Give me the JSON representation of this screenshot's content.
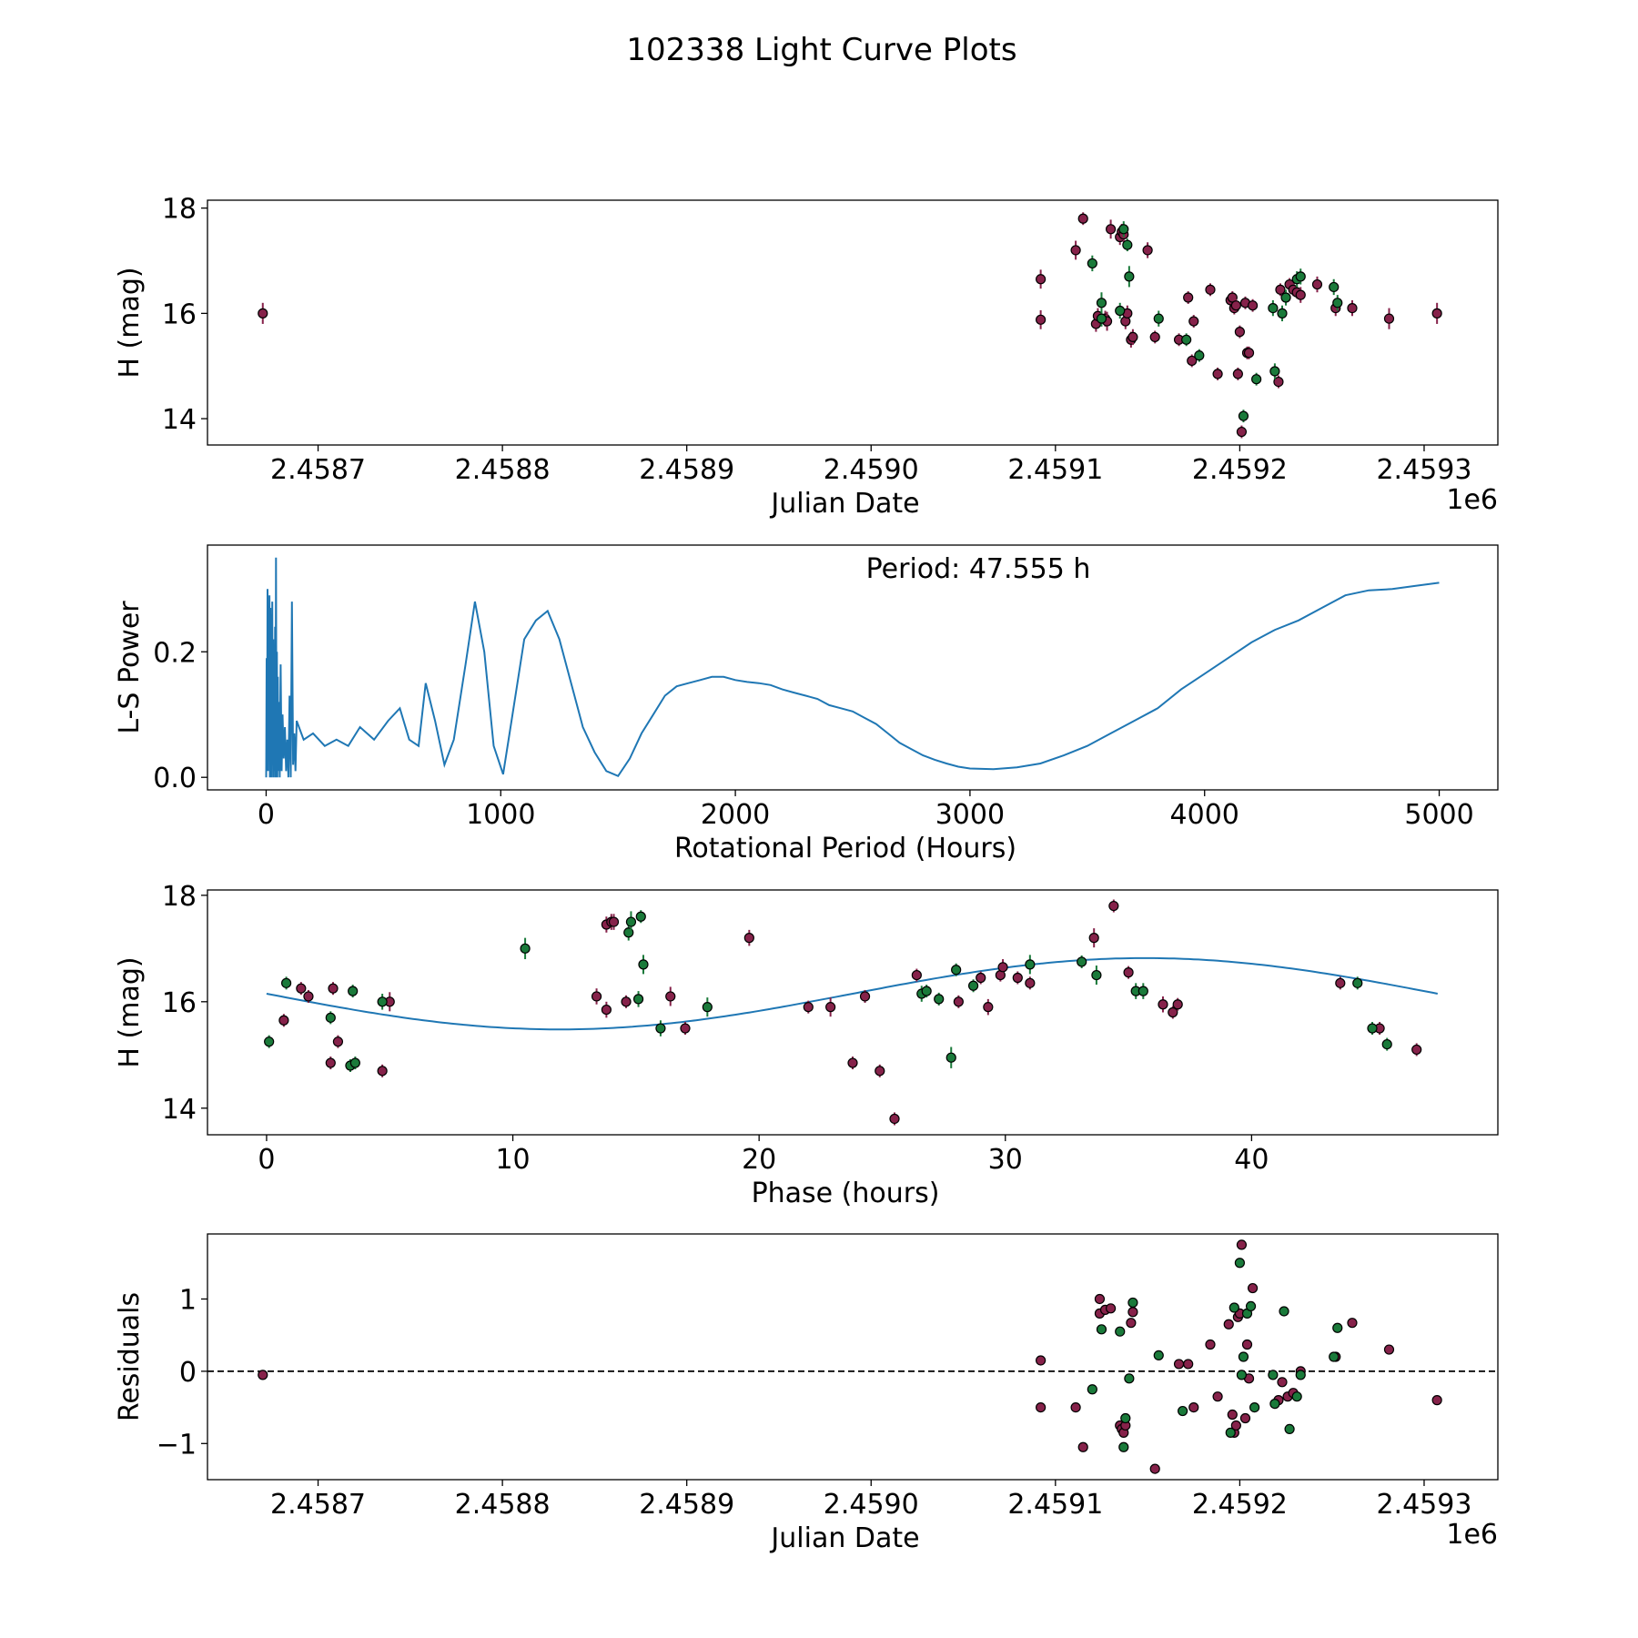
{
  "suptitle": "102338 Light Curve Plots",
  "colors": {
    "purple": "#86224a",
    "green": "#1a7a3a",
    "line": "#1f77b4",
    "marker_edge": "#000000"
  },
  "chart_data": [
    {
      "id": "jd",
      "type": "scatter",
      "xlabel": "Julian Date",
      "ylabel": "H (mag)",
      "x_offset_label": "1e6",
      "xlim": [
        2.45864,
        2.45934
      ],
      "ylim": [
        13.5,
        18.15
      ],
      "xticks": [
        2.4587,
        2.4588,
        2.4589,
        2.459,
        2.4591,
        2.4592,
        2.4593
      ],
      "xtick_labels": [
        "2.4587",
        "2.4588",
        "2.4589",
        "2.4590",
        "2.4591",
        "2.4592",
        "2.4593"
      ],
      "yticks": [
        14,
        16,
        18
      ],
      "ytick_labels": [
        "14",
        "16",
        "18"
      ],
      "series": [
        {
          "name": "purple",
          "x": [
            2.45867,
            2.459092,
            2.459092,
            2.459111,
            2.459115,
            2.459122,
            2.459123,
            2.459127,
            2.459128,
            2.45913,
            2.459135,
            2.459136,
            2.459137,
            2.459138,
            2.459139,
            2.459141,
            2.459142,
            2.45915,
            2.459154,
            2.459167,
            2.459172,
            2.459174,
            2.459175,
            2.459184,
            2.459188,
            2.459195,
            2.459196,
            2.459197,
            2.459198,
            2.459199,
            2.4592,
            2.459201,
            2.459203,
            2.459204,
            2.459205,
            2.459207,
            2.459221,
            2.459222,
            2.459227,
            2.459229,
            2.459231,
            2.459233,
            2.459242,
            2.459252,
            2.459261,
            2.459281,
            2.459307
          ],
          "y": [
            16.0,
            16.65,
            15.88,
            17.2,
            17.8,
            15.8,
            15.95,
            15.9,
            15.85,
            17.6,
            17.45,
            17.55,
            17.5,
            15.85,
            16.0,
            15.5,
            15.55,
            17.2,
            15.55,
            15.5,
            16.3,
            15.1,
            15.85,
            16.45,
            14.85,
            16.25,
            16.3,
            16.1,
            16.15,
            14.85,
            15.65,
            13.75,
            16.2,
            15.25,
            15.25,
            16.15,
            14.7,
            16.45,
            16.55,
            16.45,
            16.4,
            16.35,
            16.55,
            16.1,
            16.1,
            15.9,
            16.0
          ],
          "yerr": [
            0.2,
            0.18,
            0.18,
            0.18,
            0.12,
            0.15,
            0.15,
            0.15,
            0.18,
            0.18,
            0.15,
            0.15,
            0.15,
            0.15,
            0.15,
            0.15,
            0.15,
            0.15,
            0.12,
            0.12,
            0.12,
            0.12,
            0.12,
            0.12,
            0.12,
            0.12,
            0.12,
            0.12,
            0.12,
            0.12,
            0.12,
            0.12,
            0.12,
            0.12,
            0.12,
            0.12,
            0.12,
            0.12,
            0.12,
            0.12,
            0.12,
            0.15,
            0.15,
            0.15,
            0.15,
            0.2,
            0.2
          ]
        },
        {
          "name": "green",
          "x": [
            2.45912,
            2.459125,
            2.459125,
            2.459135,
            2.459137,
            2.459139,
            2.45914,
            2.459156,
            2.459171,
            2.459178,
            2.459202,
            2.459209,
            2.459218,
            2.459219,
            2.459223,
            2.459225,
            2.459231,
            2.459233,
            2.459251,
            2.459253
          ],
          "y": [
            16.95,
            16.2,
            15.9,
            16.05,
            17.6,
            17.3,
            16.7,
            15.9,
            15.5,
            15.2,
            14.05,
            14.75,
            16.1,
            14.9,
            16.0,
            16.3,
            16.65,
            16.7,
            16.5,
            16.2
          ],
          "yerr": [
            0.15,
            0.2,
            0.15,
            0.15,
            0.15,
            0.12,
            0.2,
            0.15,
            0.12,
            0.12,
            0.12,
            0.12,
            0.15,
            0.15,
            0.15,
            0.15,
            0.15,
            0.15,
            0.15,
            0.15
          ]
        }
      ]
    },
    {
      "id": "ls",
      "type": "line",
      "xlabel": "Rotational Period (Hours)",
      "ylabel": "L-S Power",
      "annotation": "Period: 47.555 h",
      "xlim": [
        -250,
        5250
      ],
      "ylim": [
        -0.02,
        0.37
      ],
      "xticks": [
        0,
        1000,
        2000,
        3000,
        4000,
        5000
      ],
      "xtick_labels": [
        "0",
        "1000",
        "2000",
        "3000",
        "4000",
        "5000"
      ],
      "yticks": [
        0.0,
        0.2
      ],
      "ytick_labels": [
        "0.0",
        "0.2"
      ],
      "x": [
        0,
        20,
        40,
        60,
        80,
        100,
        130,
        160,
        200,
        250,
        300,
        350,
        400,
        460,
        520,
        570,
        610,
        650,
        680,
        720,
        760,
        800,
        850,
        890,
        930,
        970,
        1010,
        1050,
        1100,
        1150,
        1200,
        1250,
        1300,
        1350,
        1400,
        1450,
        1500,
        1550,
        1600,
        1650,
        1700,
        1750,
        1800,
        1850,
        1900,
        1950,
        2000,
        2050,
        2100,
        2150,
        2200,
        2250,
        2300,
        2350,
        2400,
        2450,
        2500,
        2550,
        2600,
        2650,
        2700,
        2750,
        2800,
        2850,
        2900,
        2950,
        3000,
        3100,
        3200,
        3300,
        3400,
        3500,
        3600,
        3700,
        3800,
        3900,
        4000,
        4100,
        4200,
        4300,
        4400,
        4500,
        4600,
        4700,
        4800,
        4900,
        5000
      ],
      "y": [
        0.12,
        0.22,
        0.15,
        0.25,
        0.1,
        0.18,
        0.09,
        0.06,
        0.07,
        0.05,
        0.06,
        0.05,
        0.08,
        0.06,
        0.09,
        0.11,
        0.06,
        0.05,
        0.15,
        0.09,
        0.02,
        0.06,
        0.18,
        0.28,
        0.2,
        0.05,
        0.005,
        0.1,
        0.22,
        0.25,
        0.265,
        0.22,
        0.15,
        0.08,
        0.04,
        0.01,
        0.002,
        0.03,
        0.07,
        0.1,
        0.13,
        0.145,
        0.15,
        0.155,
        0.16,
        0.16,
        0.155,
        0.152,
        0.15,
        0.147,
        0.14,
        0.135,
        0.13,
        0.125,
        0.115,
        0.11,
        0.105,
        0.095,
        0.085,
        0.07,
        0.055,
        0.045,
        0.035,
        0.028,
        0.022,
        0.017,
        0.014,
        0.013,
        0.016,
        0.022,
        0.035,
        0.05,
        0.07,
        0.09,
        0.11,
        0.14,
        0.165,
        0.19,
        0.215,
        0.235,
        0.25,
        0.27,
        0.29,
        0.298,
        0.3,
        0.305,
        0.31
      ],
      "dense_region": {
        "x_max": 130,
        "x": [
          0,
          2,
          4,
          6,
          8,
          10,
          12,
          14,
          16,
          18,
          20,
          22,
          24,
          26,
          28,
          30,
          32,
          34,
          36,
          38,
          40,
          42,
          44,
          46,
          48,
          50,
          52,
          55,
          58,
          62,
          66,
          70,
          75,
          80,
          85,
          90,
          95,
          100,
          105,
          110,
          115,
          120,
          125
        ],
        "y": [
          0.0,
          0.19,
          0.02,
          0.3,
          0.01,
          0.25,
          0.05,
          0.29,
          0.0,
          0.27,
          0.03,
          0.26,
          0.0,
          0.28,
          0.02,
          0.22,
          0.0,
          0.19,
          0.01,
          0.24,
          0.0,
          0.35,
          0.02,
          0.2,
          0.0,
          0.16,
          0.01,
          0.12,
          0.0,
          0.18,
          0.01,
          0.1,
          0.03,
          0.08,
          0.01,
          0.06,
          0.0,
          0.13,
          0.0,
          0.28,
          0.02,
          0.07,
          0.01
        ]
      }
    },
    {
      "id": "phase",
      "type": "scatter",
      "xlabel": "Phase (hours)",
      "ylabel": "H (mag)",
      "xlim": [
        -2.4,
        50.0
      ],
      "ylim": [
        13.5,
        18.1
      ],
      "xticks": [
        0,
        10,
        20,
        30,
        40
      ],
      "xtick_labels": [
        "0",
        "10",
        "20",
        "30",
        "40"
      ],
      "yticks": [
        14,
        16,
        18
      ],
      "ytick_labels": [
        "14",
        "16",
        "18"
      ],
      "fit": {
        "period": 47.555,
        "mean": 16.15,
        "amplitude": 0.67,
        "phase_offset": 11.9
      },
      "series": [
        {
          "name": "purple",
          "x": [
            0.7,
            1.4,
            1.7,
            2.6,
            2.7,
            2.9,
            4.7,
            5.0,
            13.4,
            13.8,
            13.8,
            14.0,
            14.1,
            14.6,
            16.4,
            17.0,
            19.6,
            22.0,
            22.9,
            23.8,
            24.3,
            24.9,
            25.5,
            26.4,
            28.1,
            29.0,
            29.3,
            29.8,
            29.9,
            30.5,
            31.0,
            33.6,
            34.4,
            35.0,
            36.4,
            36.8,
            37.0,
            43.6,
            45.2,
            46.7
          ],
          "y": [
            15.65,
            16.25,
            16.1,
            14.85,
            16.25,
            15.25,
            14.7,
            16.0,
            16.1,
            15.85,
            17.45,
            17.5,
            17.5,
            16.0,
            16.1,
            15.5,
            17.2,
            15.9,
            15.9,
            14.85,
            16.1,
            14.7,
            13.8,
            16.5,
            16.0,
            16.45,
            15.9,
            16.5,
            16.65,
            16.45,
            16.35,
            17.2,
            17.8,
            16.55,
            15.95,
            15.8,
            15.95,
            16.35,
            15.5,
            15.1
          ],
          "yerr": [
            0.12,
            0.12,
            0.12,
            0.12,
            0.12,
            0.12,
            0.12,
            0.18,
            0.15,
            0.15,
            0.15,
            0.15,
            0.15,
            0.12,
            0.18,
            0.12,
            0.15,
            0.12,
            0.18,
            0.12,
            0.12,
            0.12,
            0.12,
            0.12,
            0.12,
            0.12,
            0.15,
            0.12,
            0.15,
            0.12,
            0.12,
            0.18,
            0.12,
            0.12,
            0.15,
            0.12,
            0.12,
            0.12,
            0.12,
            0.12
          ]
        },
        {
          "name": "green",
          "x": [
            0.1,
            0.8,
            2.6,
            3.4,
            3.5,
            3.6,
            4.7,
            10.5,
            14.7,
            14.8,
            15.1,
            15.2,
            15.3,
            16.0,
            17.9,
            26.6,
            26.8,
            27.3,
            27.8,
            28.0,
            28.7,
            31.0,
            33.1,
            33.7,
            35.3,
            35.6,
            44.3,
            44.9,
            45.5
          ],
          "y": [
            15.25,
            16.35,
            15.7,
            14.8,
            16.2,
            14.85,
            16.0,
            17.0,
            17.3,
            17.5,
            16.05,
            17.6,
            16.7,
            15.5,
            15.9,
            16.15,
            16.2,
            16.05,
            14.95,
            16.6,
            16.3,
            16.7,
            16.75,
            16.5,
            16.2,
            16.2,
            16.35,
            15.5,
            15.2
          ],
          "yerr": [
            0.12,
            0.12,
            0.12,
            0.12,
            0.12,
            0.12,
            0.15,
            0.2,
            0.15,
            0.2,
            0.15,
            0.12,
            0.18,
            0.15,
            0.18,
            0.15,
            0.12,
            0.12,
            0.2,
            0.12,
            0.12,
            0.18,
            0.12,
            0.18,
            0.15,
            0.15,
            0.12,
            0.12,
            0.12
          ]
        }
      ]
    },
    {
      "id": "resid",
      "type": "scatter",
      "xlabel": "Julian Date",
      "ylabel": "Residuals",
      "x_offset_label": "1e6",
      "xlim": [
        2.45864,
        2.45934
      ],
      "ylim": [
        -1.5,
        1.9
      ],
      "xticks": [
        2.4587,
        2.4588,
        2.4589,
        2.459,
        2.4591,
        2.4592,
        2.4593
      ],
      "xtick_labels": [
        "2.4587",
        "2.4588",
        "2.4589",
        "2.4590",
        "2.4591",
        "2.4592",
        "2.4593"
      ],
      "yticks": [
        -1,
        0,
        1
      ],
      "ytick_labels": [
        "−1",
        "0",
        "1"
      ],
      "hline": 0,
      "series": [
        {
          "name": "purple",
          "x": [
            2.45867,
            2.459092,
            2.459092,
            2.459111,
            2.459115,
            2.459124,
            2.459124,
            2.459127,
            2.45913,
            2.459135,
            2.459136,
            2.459137,
            2.459138,
            2.459141,
            2.459142,
            2.459154,
            2.459167,
            2.459172,
            2.459175,
            2.459184,
            2.459188,
            2.459194,
            2.459196,
            2.459197,
            2.459198,
            2.459199,
            2.4592,
            2.459201,
            2.459203,
            2.459204,
            2.459205,
            2.459207,
            2.459221,
            2.459223,
            2.459226,
            2.459229,
            2.459233,
            2.459252,
            2.459261,
            2.459281,
            2.459307
          ],
          "y": [
            -0.05,
            0.15,
            -0.5,
            -0.5,
            -1.05,
            1.0,
            0.8,
            0.85,
            0.87,
            -0.75,
            -0.8,
            -0.85,
            -0.75,
            0.67,
            0.82,
            -1.35,
            0.1,
            0.1,
            -0.5,
            0.37,
            -0.35,
            0.65,
            -0.6,
            -0.85,
            -0.75,
            0.75,
            0.8,
            1.75,
            -0.65,
            0.37,
            -0.1,
            1.15,
            -0.4,
            -0.15,
            -0.35,
            -0.3,
            0.0,
            0.2,
            0.67,
            0.3,
            -0.4
          ]
        },
        {
          "name": "green",
          "x": [
            2.45912,
            2.459125,
            2.459135,
            2.459137,
            2.459138,
            2.45914,
            2.459142,
            2.459156,
            2.459169,
            2.459195,
            2.459197,
            2.4592,
            2.459201,
            2.459202,
            2.459204,
            2.459206,
            2.459208,
            2.459218,
            2.459219,
            2.459224,
            2.459227,
            2.459231,
            2.459233,
            2.459251,
            2.459253
          ],
          "y": [
            -0.25,
            0.58,
            0.55,
            -1.05,
            -0.65,
            -0.1,
            0.95,
            0.22,
            -0.55,
            -0.85,
            0.88,
            1.5,
            -0.05,
            0.2,
            0.8,
            0.9,
            -0.5,
            -0.05,
            -0.45,
            0.83,
            -0.8,
            -0.35,
            -0.05,
            0.2,
            0.6
          ]
        }
      ]
    }
  ]
}
